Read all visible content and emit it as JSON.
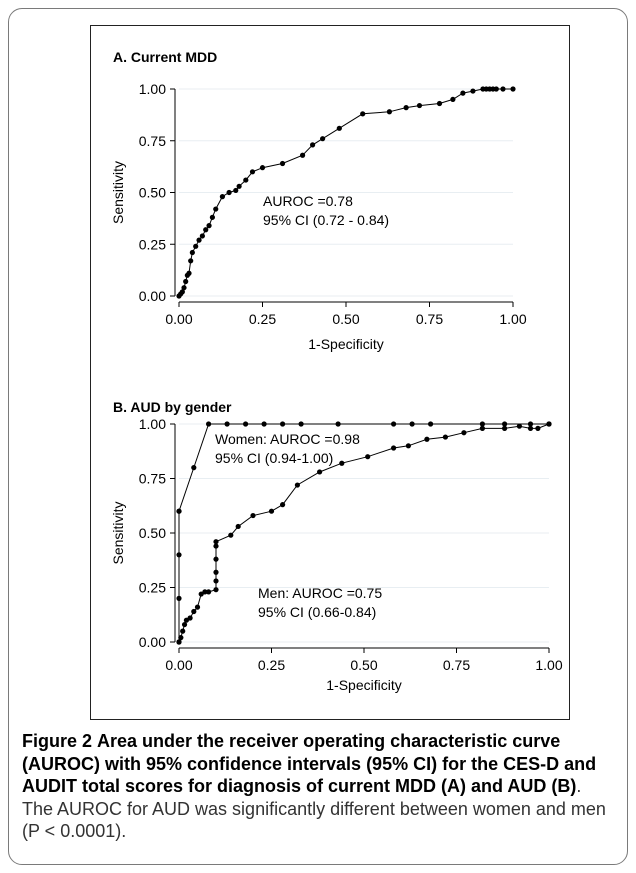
{
  "caption": {
    "label": "Figure 2",
    "bold_text": "Area under the receiver operating characteristic curve (AUROC) with 95% confidence intervals (95% CI) for the CES-D and AUDIT total scores for diagnosis of current MDD (A) and AUD (B)",
    "rest": ". The AUROC for AUD was significantly different between women and men (P < 0.0001)."
  },
  "chart_data": [
    {
      "type": "line",
      "title": "A. Current MDD",
      "xlabel": "1-Specificity",
      "ylabel": "Sensitivity",
      "xlim": [
        0,
        1
      ],
      "ylim": [
        0,
        1
      ],
      "xticks": [
        "0.00",
        "0.25",
        "0.50",
        "0.75",
        "1.00"
      ],
      "yticks": [
        "0.00",
        "0.25",
        "0.50",
        "0.75",
        "1.00"
      ],
      "grid": true,
      "annotations": [
        "AUROC =0.78",
        "95% CI (0.72 - 0.84)"
      ],
      "series": [
        {
          "x": [
            0,
            0.005,
            0.01,
            0.015,
            0.02,
            0.025,
            0.03,
            0.035,
            0.04,
            0.05,
            0.06,
            0.07,
            0.08,
            0.09,
            0.1,
            0.11,
            0.13,
            0.15,
            0.17,
            0.18,
            0.2,
            0.22,
            0.25,
            0.31,
            0.37,
            0.4,
            0.43,
            0.48,
            0.55,
            0.63,
            0.68,
            0.72,
            0.78,
            0.82,
            0.85,
            0.88,
            0.91,
            0.92,
            0.93,
            0.94,
            0.95,
            0.97,
            1.0
          ],
          "y": [
            0,
            0.01,
            0.02,
            0.04,
            0.07,
            0.1,
            0.11,
            0.17,
            0.21,
            0.24,
            0.27,
            0.29,
            0.32,
            0.34,
            0.38,
            0.42,
            0.48,
            0.5,
            0.51,
            0.53,
            0.56,
            0.6,
            0.62,
            0.64,
            0.68,
            0.73,
            0.76,
            0.81,
            0.88,
            0.89,
            0.91,
            0.92,
            0.93,
            0.95,
            0.98,
            0.99,
            1.0,
            1.0,
            1.0,
            1.0,
            1.0,
            1.0,
            1.0
          ]
        }
      ]
    },
    {
      "type": "line",
      "title": "B. AUD by gender",
      "xlabel": "1-Specificity",
      "ylabel": "Sensitivity",
      "xlim": [
        0,
        1
      ],
      "ylim": [
        0,
        1
      ],
      "xticks": [
        "0.00",
        "0.25",
        "0.50",
        "0.75",
        "1.00"
      ],
      "yticks": [
        "0.00",
        "0.25",
        "0.50",
        "0.75",
        "1.00"
      ],
      "grid": true,
      "annotations": [
        "Women: AUROC =0.98",
        "95% CI (0.94-1.00)",
        "Men: AUROC =0.75",
        "95% CI (0.66-0.84)"
      ],
      "series": [
        {
          "x": [
            0,
            0,
            0,
            0,
            0,
            0.04,
            0.08,
            0.13,
            0.18,
            0.23,
            0.28,
            0.33,
            0.43,
            0.58,
            0.63,
            0.68,
            0.82,
            0.88,
            0.95,
            1.0
          ],
          "y": [
            0,
            0.2,
            0.4,
            0.6,
            0.6,
            0.8,
            1.0,
            1.0,
            1.0,
            1.0,
            1.0,
            1.0,
            1.0,
            1.0,
            1.0,
            1.0,
            1.0,
            1.0,
            1.0,
            1.0
          ]
        },
        {
          "x": [
            0,
            0.005,
            0.01,
            0.015,
            0.02,
            0.03,
            0.04,
            0.05,
            0.06,
            0.07,
            0.08,
            0.1,
            0.1,
            0.1,
            0.1,
            0.1,
            0.1,
            0.14,
            0.16,
            0.2,
            0.25,
            0.28,
            0.32,
            0.38,
            0.44,
            0.51,
            0.58,
            0.62,
            0.67,
            0.72,
            0.77,
            0.82,
            0.88,
            0.92,
            0.95,
            0.97,
            1.0
          ],
          "y": [
            0,
            0.02,
            0.05,
            0.08,
            0.1,
            0.11,
            0.14,
            0.16,
            0.22,
            0.23,
            0.23,
            0.24,
            0.28,
            0.32,
            0.38,
            0.44,
            0.46,
            0.49,
            0.53,
            0.58,
            0.6,
            0.63,
            0.72,
            0.78,
            0.82,
            0.85,
            0.89,
            0.9,
            0.93,
            0.94,
            0.96,
            0.98,
            0.98,
            0.99,
            0.98,
            0.98,
            1.0
          ]
        }
      ]
    }
  ]
}
